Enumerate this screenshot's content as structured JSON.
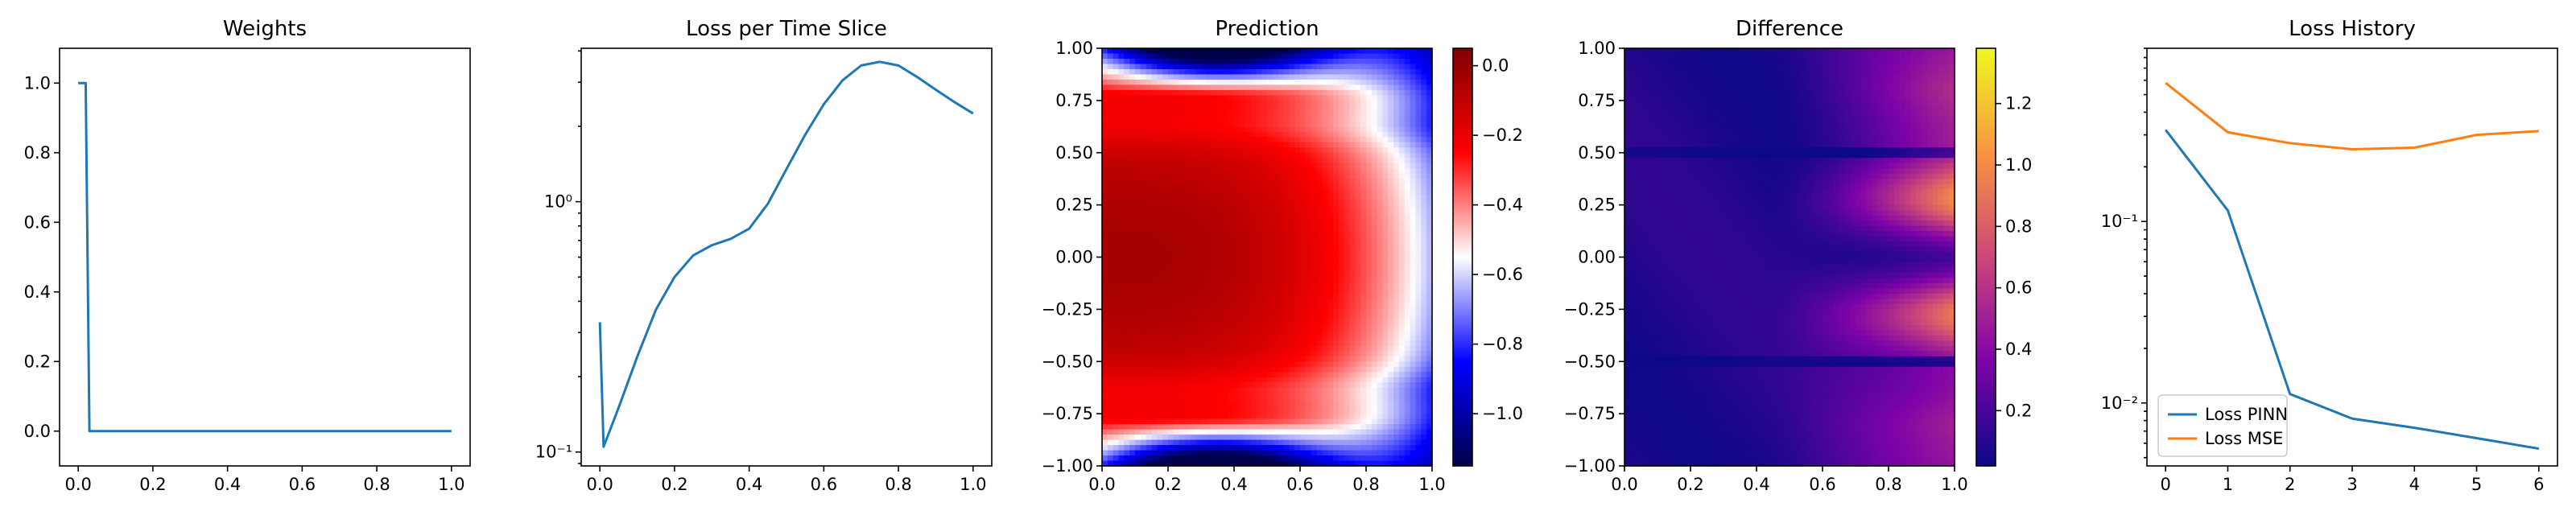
{
  "chart_data": [
    {
      "type": "line",
      "title": "Weights",
      "xlim": [
        -0.05,
        1.05
      ],
      "ylim": [
        -0.1,
        1.1
      ],
      "xticks": [
        0.0,
        0.2,
        0.4,
        0.6,
        0.8,
        1.0
      ],
      "xtick_labels": [
        "0.0",
        "0.2",
        "0.4",
        "0.6",
        "0.8",
        "1.0"
      ],
      "yticks": [
        0.0,
        0.2,
        0.4,
        0.6,
        0.8,
        1.0
      ],
      "ytick_labels": [
        "0.0",
        "0.2",
        "0.4",
        "0.6",
        "0.8",
        "1.0"
      ],
      "series": [
        {
          "color": "#1f77b4",
          "x": [
            0.0,
            0.02,
            0.03,
            1.0
          ],
          "y": [
            1.0,
            1.0,
            0.0,
            0.0
          ]
        }
      ]
    },
    {
      "type": "line",
      "title": "Loss per Time Slice",
      "yscale": "log",
      "xlim": [
        -0.05,
        1.05
      ],
      "ylim": [
        0.088,
        4.1
      ],
      "xticks": [
        0.0,
        0.2,
        0.4,
        0.6,
        0.8,
        1.0
      ],
      "xtick_labels": [
        "0.0",
        "0.2",
        "0.4",
        "0.6",
        "0.8",
        "1.0"
      ],
      "yticks": [
        0.1,
        1.0
      ],
      "ytick_labels": [
        "10⁻¹",
        "10⁰"
      ],
      "series": [
        {
          "color": "#1f77b4",
          "x": [
            0.0,
            0.01,
            0.05,
            0.1,
            0.15,
            0.2,
            0.25,
            0.3,
            0.35,
            0.4,
            0.45,
            0.5,
            0.55,
            0.6,
            0.65,
            0.7,
            0.75,
            0.8,
            0.85,
            0.9,
            0.95,
            1.0
          ],
          "y": [
            0.33,
            0.105,
            0.15,
            0.24,
            0.37,
            0.5,
            0.61,
            0.67,
            0.71,
            0.78,
            0.98,
            1.35,
            1.85,
            2.45,
            3.05,
            3.5,
            3.62,
            3.5,
            3.15,
            2.8,
            2.5,
            2.25
          ]
        }
      ]
    },
    {
      "type": "heatmap",
      "title": "Prediction",
      "xlim": [
        0.0,
        1.0
      ],
      "ylim": [
        -1.0,
        1.0
      ],
      "xticks": [
        0.0,
        0.2,
        0.4,
        0.6,
        0.8,
        1.0
      ],
      "xtick_labels": [
        "0.0",
        "0.2",
        "0.4",
        "0.6",
        "0.8",
        "1.0"
      ],
      "yticks": [
        -1.0,
        -0.75,
        -0.5,
        -0.25,
        0.0,
        0.25,
        0.5,
        0.75,
        1.0
      ],
      "ytick_labels": [
        "−1.00",
        "−0.75",
        "−0.50",
        "−0.25",
        "0.00",
        "0.25",
        "0.50",
        "0.75",
        "1.00"
      ],
      "colormap": "seismic",
      "colorbar": {
        "vmin": -1.15,
        "vmax": 0.05,
        "ticks": [
          -1.0,
          -0.8,
          -0.6,
          -0.4,
          -0.2,
          0.0
        ],
        "tick_labels": [
          "−1.0",
          "−0.8",
          "−0.6",
          "−0.4",
          "−0.2",
          "0.0"
        ]
      }
    },
    {
      "type": "heatmap",
      "title": "Difference",
      "xlim": [
        0.0,
        1.0
      ],
      "ylim": [
        -1.0,
        1.0
      ],
      "xticks": [
        0.0,
        0.2,
        0.4,
        0.6,
        0.8,
        1.0
      ],
      "xtick_labels": [
        "0.0",
        "0.2",
        "0.4",
        "0.6",
        "0.8",
        "1.0"
      ],
      "yticks": [
        -1.0,
        -0.75,
        -0.5,
        -0.25,
        0.0,
        0.25,
        0.5,
        0.75,
        1.0
      ],
      "ytick_labels": [
        "−1.00",
        "−0.75",
        "−0.50",
        "−0.25",
        "0.00",
        "0.25",
        "0.50",
        "0.75",
        "1.00"
      ],
      "colormap": "plasma",
      "colorbar": {
        "vmin": 0.02,
        "vmax": 1.38,
        "ticks": [
          0.2,
          0.4,
          0.6,
          0.8,
          1.0,
          1.2
        ],
        "tick_labels": [
          "0.2",
          "0.4",
          "0.6",
          "0.8",
          "1.0",
          "1.2"
        ]
      }
    },
    {
      "type": "line",
      "title": "Loss History",
      "yscale": "log",
      "xlim": [
        -0.3,
        6.3
      ],
      "ylim": [
        0.0045,
        0.9
      ],
      "xticks": [
        0,
        1,
        2,
        3,
        4,
        5,
        6
      ],
      "xtick_labels": [
        "0",
        "1",
        "2",
        "3",
        "4",
        "5",
        "6"
      ],
      "yticks": [
        0.01,
        0.1
      ],
      "ytick_labels": [
        "10⁻²",
        "10⁻¹"
      ],
      "legend": "lower-left",
      "series": [
        {
          "name": "Loss PINN",
          "color": "#1f77b4",
          "x": [
            0,
            1,
            2,
            3,
            4,
            5,
            6
          ],
          "y": [
            0.32,
            0.115,
            0.0112,
            0.0082,
            0.0073,
            0.0064,
            0.0056
          ]
        },
        {
          "name": "Loss MSE",
          "color": "#ff7f0e",
          "x": [
            0,
            1,
            2,
            3,
            4,
            5,
            6
          ],
          "y": [
            0.58,
            0.31,
            0.27,
            0.25,
            0.255,
            0.3,
            0.315
          ]
        }
      ]
    }
  ]
}
